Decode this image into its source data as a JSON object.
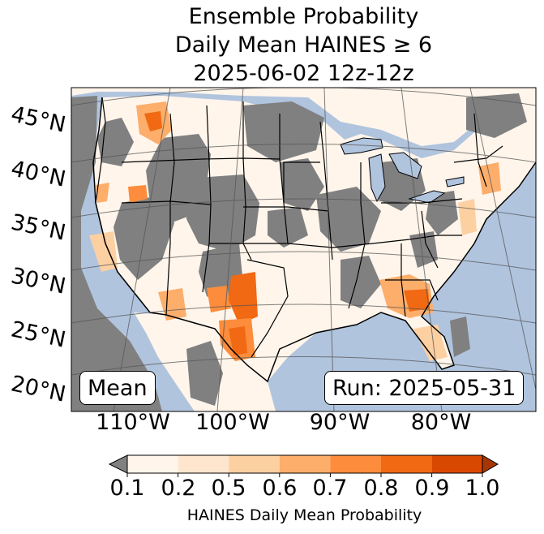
{
  "title": {
    "line1": "Ensemble Probability",
    "line2": "Daily Mean HAINES ≥ 6",
    "line3": "2025-06-02 12z-12z"
  },
  "map": {
    "latitude_labels": [
      "45°N",
      "40°N",
      "35°N",
      "30°N",
      "25°N",
      "20°N"
    ],
    "longitude_labels": [
      "110°W",
      "100°W",
      "90°W",
      "80°W"
    ],
    "statistic_label": "Mean",
    "run_label": "Run: 2025-05-31",
    "colors": {
      "ocean": "#b0c4de",
      "no_data_gray": "#808080",
      "land_low": "#fff5eb"
    }
  },
  "colorbar": {
    "label": "HAINES Daily Mean Probability",
    "ticks": [
      "0.1",
      "0.2",
      "0.5",
      "0.6",
      "0.7",
      "0.8",
      "0.9",
      "1.0"
    ],
    "bin_colors": [
      "#fff5eb",
      "#fee6ce",
      "#fdd0a2",
      "#fdae6b",
      "#fd8d3c",
      "#f16913",
      "#d94801"
    ],
    "under_color": "#808080",
    "over_color": "#a63603"
  }
}
